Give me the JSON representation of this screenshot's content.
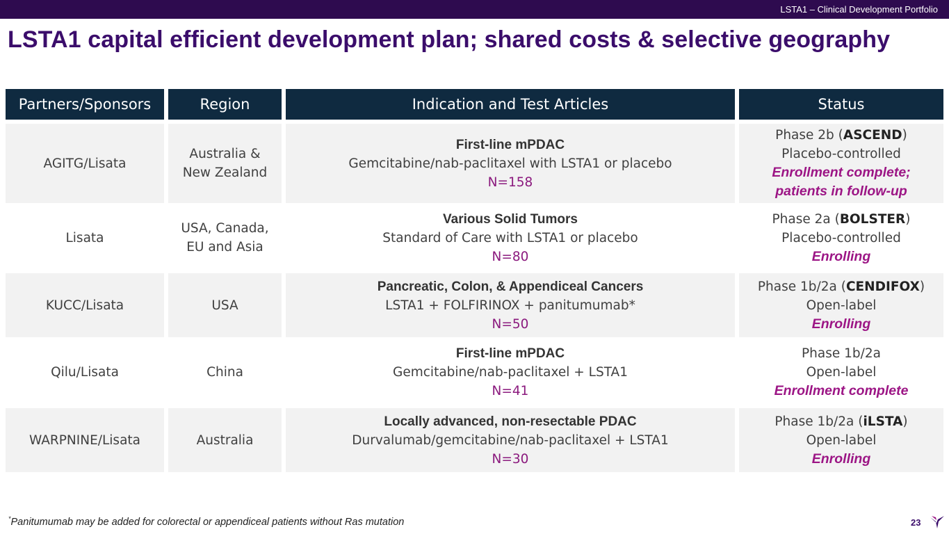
{
  "header": {
    "doc_title": "LSTA1 – Clinical Development Portfolio"
  },
  "slide_title": "LSTA1 capital efficient development plan; shared costs & selective geography",
  "table": {
    "columns": [
      "Partners/Sponsors",
      "Region",
      "Indication and Test Articles",
      "Status"
    ],
    "rows": [
      {
        "partner": "AGITG/Lisata",
        "region_1": "Australia &",
        "region_2": "New Zealand",
        "indication": "First-line mPDAC",
        "articles": "Gemcitabine/nab-paclitaxel with LSTA1 or placebo",
        "n": "N=158",
        "phase_prefix": "Phase 2b (",
        "trial": "ASCEND",
        "phase_suffix": ")",
        "design": "Placebo-controlled",
        "status_1": "Enrollment complete;",
        "status_2": "patients in follow-up"
      },
      {
        "partner": "Lisata",
        "region_1": "USA, Canada,",
        "region_2": "EU and Asia",
        "indication": "Various Solid Tumors",
        "articles": "Standard of Care with LSTA1 or placebo",
        "n": "N=80",
        "phase_prefix": "Phase 2a (",
        "trial": "BOLSTER",
        "phase_suffix": ")",
        "design": "Placebo-controlled",
        "status_1": "Enrolling"
      },
      {
        "partner": "KUCC/Lisata",
        "region_1": "USA",
        "indication": "Pancreatic, Colon, & Appendiceal Cancers",
        "articles": "LSTA1 + FOLFIRINOX + panitumumab*",
        "n": "N=50",
        "phase_prefix": "Phase 1b/2a (",
        "trial": "CENDIFOX",
        "phase_suffix": ")",
        "design": "Open-label",
        "status_1": "Enrolling"
      },
      {
        "partner": "Qilu/Lisata",
        "region_1": "China",
        "indication": "First-line mPDAC",
        "articles": "Gemcitabine/nab-paclitaxel + LSTA1",
        "n": "N=41",
        "phase_prefix": "Phase 1b/2a",
        "design": "Open-label",
        "status_1": "Enrollment complete"
      },
      {
        "partner": "WARPNINE/Lisata",
        "region_1": "Australia",
        "indication": "Locally advanced, non-resectable PDAC",
        "articles": "Durvalumab/gemcitabine/nab-paclitaxel + LSTA1",
        "n": "N=30",
        "phase_prefix": "Phase 1b/2a (",
        "trial": "iLSTA",
        "phase_suffix": ")",
        "design": "Open-label",
        "status_1": "Enrolling"
      }
    ]
  },
  "footnote": {
    "marker": "*",
    "text": "Panitumumab may be added for colorectal or appendiceal patients without Ras mutation"
  },
  "page_number": "23",
  "colors": {
    "top_bar": "#2e0b4f",
    "title": "#3b0d6b",
    "header_fill": "#0f2a40",
    "accent": "#9c1585",
    "cell_fill": "#f2f2f2"
  }
}
